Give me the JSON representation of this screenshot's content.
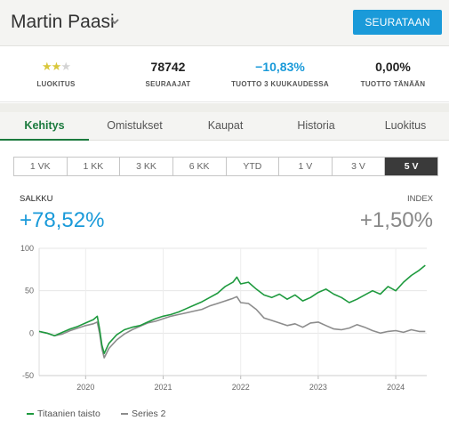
{
  "header": {
    "name": "Martin Paasi",
    "follow_label": "SEURATAAN"
  },
  "stats": {
    "rating": {
      "label": "LUOKITUS",
      "stars_filled": 2,
      "stars_total": 3
    },
    "followers": {
      "value": "78742",
      "label": "SEURAAJAT"
    },
    "return_3m": {
      "value": "−10,83%",
      "label": "TUOTTO 3 KUUKAUDESSA"
    },
    "return_today": {
      "value": "0,00%",
      "label": "TUOTTO TÄNÄÄN"
    }
  },
  "tabs": [
    "Kehitys",
    "Omistukset",
    "Kaupat",
    "Historia",
    "Luokitus"
  ],
  "active_tab": "Kehitys",
  "periods": [
    "1 VK",
    "1 KK",
    "3 KK",
    "6 KK",
    "YTD",
    "1 V",
    "3 V",
    "5 V"
  ],
  "active_period": "5 V",
  "summary": {
    "portfolio_label": "SALKKU",
    "portfolio_value": "+78,52%",
    "index_label": "INDEX",
    "index_value": "+1,50%"
  },
  "colors": {
    "accent": "#1a9ad9",
    "portfolio": "#1e9a3e",
    "index": "#8c8c8c",
    "active_tab": "#1b7a3e"
  },
  "chart_data": {
    "type": "line",
    "x_tick_labels": [
      "2020",
      "2021",
      "2022",
      "2023",
      "2024"
    ],
    "y_tick_labels": [
      "100",
      "50",
      "0",
      "-50"
    ],
    "ylim": [
      -50,
      100
    ],
    "xlim": [
      2019.4,
      2024.4
    ],
    "grid": true,
    "legend": "bottom-left",
    "series": [
      {
        "name": "Titaanien taisto",
        "color": "#1e9a3e",
        "points": [
          [
            2019.4,
            2
          ],
          [
            2019.5,
            0
          ],
          [
            2019.6,
            -3
          ],
          [
            2019.7,
            1
          ],
          [
            2019.8,
            5
          ],
          [
            2019.9,
            8
          ],
          [
            2020.0,
            12
          ],
          [
            2020.1,
            16
          ],
          [
            2020.15,
            20
          ],
          [
            2020.18,
            5
          ],
          [
            2020.21,
            -14
          ],
          [
            2020.24,
            -24
          ],
          [
            2020.3,
            -12
          ],
          [
            2020.4,
            -2
          ],
          [
            2020.5,
            4
          ],
          [
            2020.6,
            7
          ],
          [
            2020.7,
            9
          ],
          [
            2020.8,
            13
          ],
          [
            2020.9,
            17
          ],
          [
            2021.0,
            20
          ],
          [
            2021.1,
            22
          ],
          [
            2021.2,
            25
          ],
          [
            2021.3,
            29
          ],
          [
            2021.4,
            33
          ],
          [
            2021.5,
            37
          ],
          [
            2021.6,
            42
          ],
          [
            2021.7,
            47
          ],
          [
            2021.8,
            55
          ],
          [
            2021.9,
            60
          ],
          [
            2021.95,
            66
          ],
          [
            2022.0,
            58
          ],
          [
            2022.1,
            60
          ],
          [
            2022.2,
            52
          ],
          [
            2022.3,
            45
          ],
          [
            2022.4,
            42
          ],
          [
            2022.5,
            46
          ],
          [
            2022.6,
            40
          ],
          [
            2022.7,
            45
          ],
          [
            2022.8,
            38
          ],
          [
            2022.9,
            42
          ],
          [
            2023.0,
            48
          ],
          [
            2023.1,
            52
          ],
          [
            2023.2,
            46
          ],
          [
            2023.3,
            42
          ],
          [
            2023.4,
            36
          ],
          [
            2023.5,
            40
          ],
          [
            2023.6,
            45
          ],
          [
            2023.7,
            50
          ],
          [
            2023.8,
            46
          ],
          [
            2023.9,
            55
          ],
          [
            2024.0,
            50
          ],
          [
            2024.1,
            60
          ],
          [
            2024.2,
            68
          ],
          [
            2024.3,
            74
          ],
          [
            2024.38,
            80
          ]
        ]
      },
      {
        "name": "Series 2",
        "color": "#8c8c8c",
        "points": [
          [
            2019.4,
            2
          ],
          [
            2019.5,
            0
          ],
          [
            2019.6,
            -3
          ],
          [
            2019.7,
            -1
          ],
          [
            2019.8,
            3
          ],
          [
            2019.9,
            6
          ],
          [
            2020.0,
            9
          ],
          [
            2020.1,
            11
          ],
          [
            2020.15,
            13
          ],
          [
            2020.18,
            0
          ],
          [
            2020.21,
            -18
          ],
          [
            2020.24,
            -29
          ],
          [
            2020.3,
            -18
          ],
          [
            2020.4,
            -8
          ],
          [
            2020.5,
            -1
          ],
          [
            2020.6,
            4
          ],
          [
            2020.7,
            8
          ],
          [
            2020.8,
            12
          ],
          [
            2020.9,
            14
          ],
          [
            2021.0,
            17
          ],
          [
            2021.1,
            20
          ],
          [
            2021.2,
            22
          ],
          [
            2021.3,
            24
          ],
          [
            2021.4,
            26
          ],
          [
            2021.5,
            28
          ],
          [
            2021.6,
            32
          ],
          [
            2021.7,
            35
          ],
          [
            2021.8,
            38
          ],
          [
            2021.9,
            41
          ],
          [
            2021.95,
            43
          ],
          [
            2022.0,
            36
          ],
          [
            2022.1,
            35
          ],
          [
            2022.2,
            28
          ],
          [
            2022.3,
            18
          ],
          [
            2022.4,
            15
          ],
          [
            2022.5,
            12
          ],
          [
            2022.6,
            9
          ],
          [
            2022.7,
            11
          ],
          [
            2022.8,
            7
          ],
          [
            2022.9,
            12
          ],
          [
            2023.0,
            13
          ],
          [
            2023.1,
            9
          ],
          [
            2023.2,
            5
          ],
          [
            2023.3,
            4
          ],
          [
            2023.4,
            6
          ],
          [
            2023.5,
            10
          ],
          [
            2023.6,
            7
          ],
          [
            2023.7,
            3
          ],
          [
            2023.8,
            0
          ],
          [
            2023.9,
            2
          ],
          [
            2024.0,
            3
          ],
          [
            2024.1,
            1
          ],
          [
            2024.2,
            4
          ],
          [
            2024.3,
            2
          ],
          [
            2024.38,
            2
          ]
        ]
      }
    ]
  }
}
